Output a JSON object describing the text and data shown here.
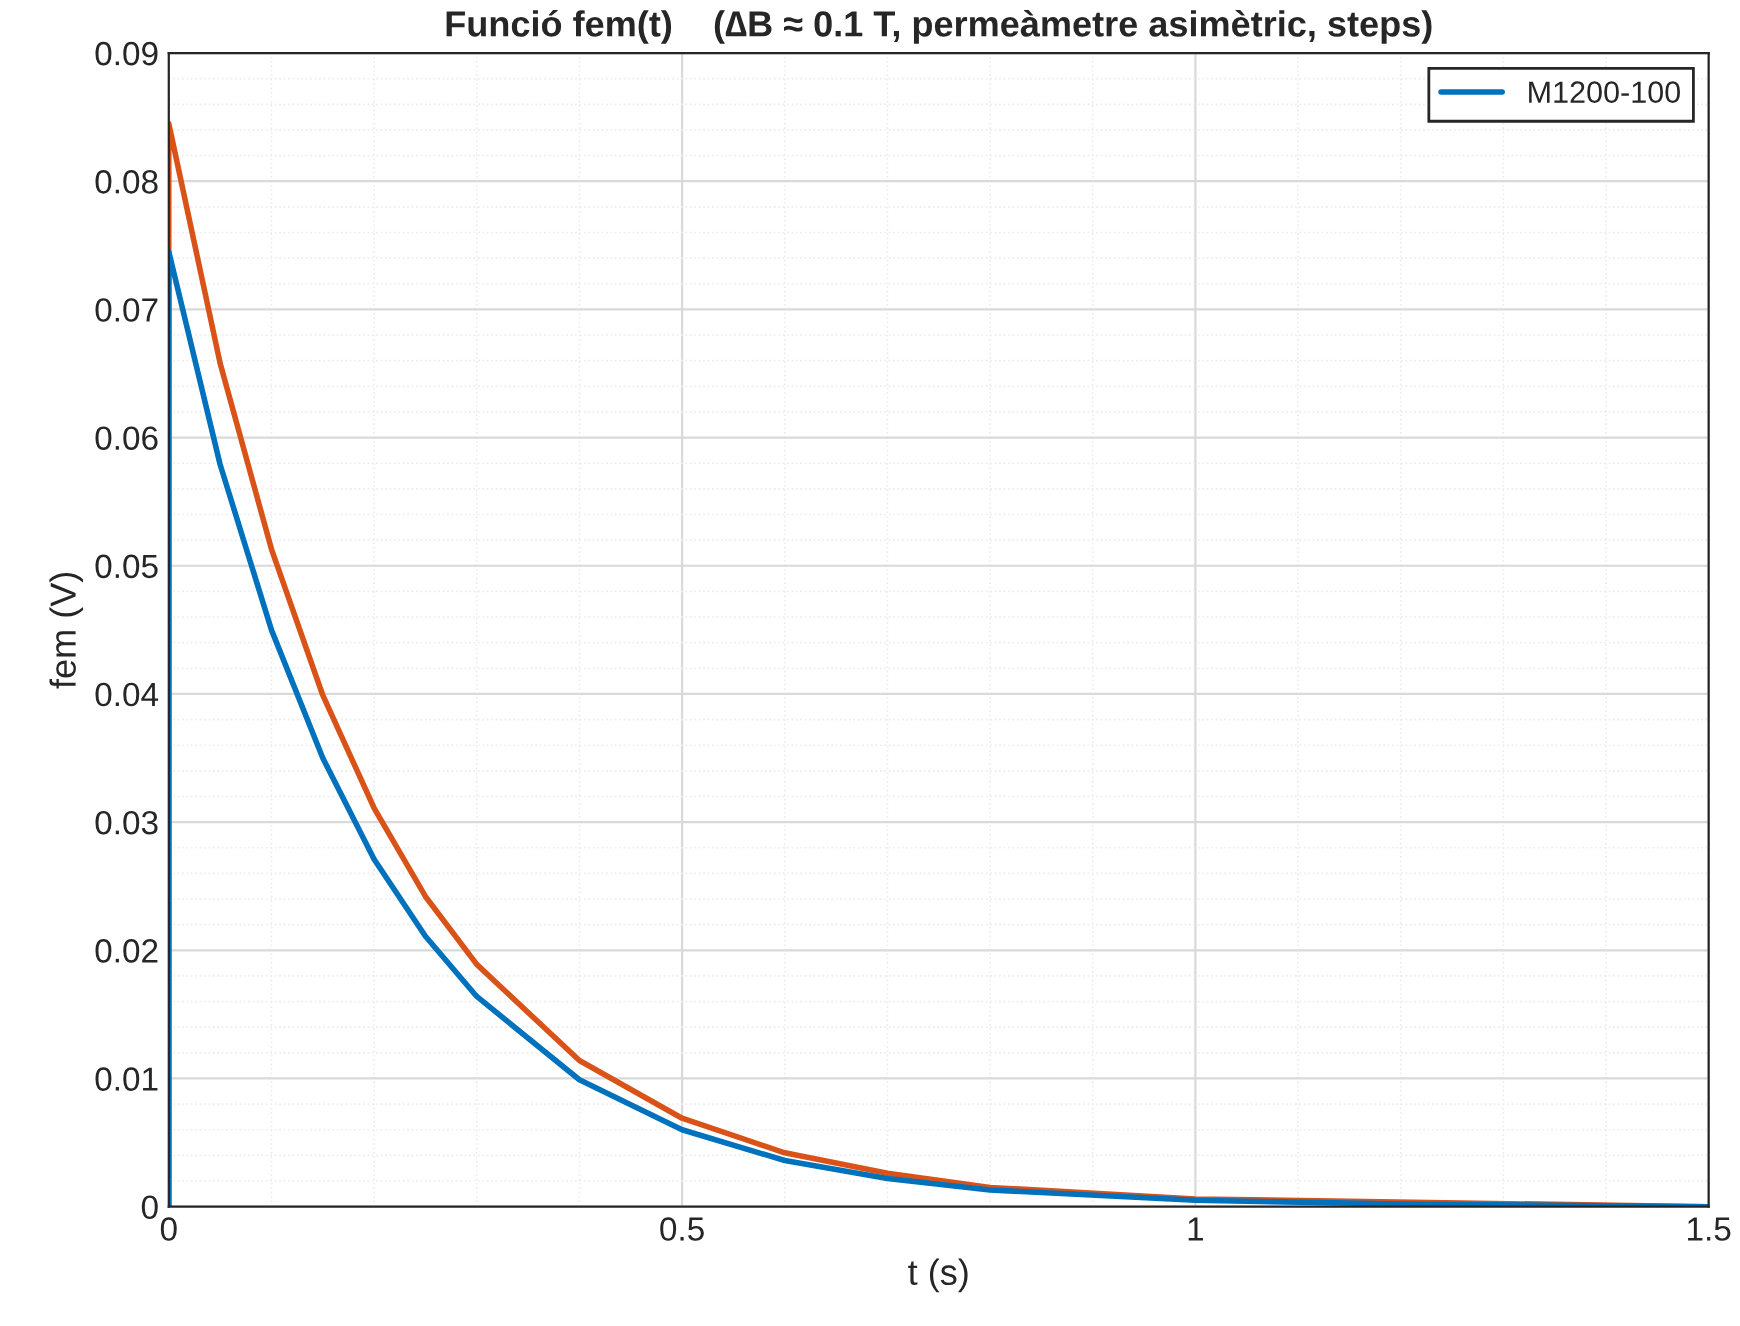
{
  "chart_data": {
    "type": "line",
    "title": "Funció fem(t)    (∆B ≈ 0.1 T, permeàmetre asimètric, steps)",
    "xlabel": "t (s)",
    "ylabel": "fem (V)",
    "x": [
      0,
      0,
      0.05,
      0.1,
      0.15,
      0.2,
      0.25,
      0.3,
      0.4,
      0.5,
      0.6,
      0.7,
      0.8,
      1.0,
      1.2,
      1.5
    ],
    "series": [
      {
        "color": "#d95319",
        "x": [
          0,
          0,
          0.05,
          0.1,
          0.15,
          0.2,
          0.25,
          0.3,
          0.4,
          0.5,
          0.6,
          0.7,
          0.8,
          1.0,
          1.5
        ],
        "values": [
          0,
          0.0845,
          0.0658,
          0.0513,
          0.0399,
          0.0311,
          0.0242,
          0.0189,
          0.0114,
          0.0069,
          0.0042,
          0.0026,
          0.0015,
          0.0006,
          0
        ]
      },
      {
        "name": "M1200-100",
        "color": "#0072bd",
        "values": [
          0,
          0.0745,
          0.0579,
          0.045,
          0.035,
          0.0271,
          0.0211,
          0.0164,
          0.0099,
          0.006,
          0.0036,
          0.0022,
          0.0013,
          0.0005,
          0.0002,
          0
        ]
      }
    ],
    "xlim": [
      0,
      1.5
    ],
    "xticks": [
      0,
      0.5,
      1,
      1.5
    ],
    "ylim": [
      0,
      0.09
    ],
    "yticks": [
      0,
      0.01,
      0.02,
      0.03,
      0.04,
      0.05,
      0.06,
      0.07,
      0.08,
      0.09
    ],
    "grid": true,
    "legend": "top right",
    "line_style": "solid",
    "marker": "none"
  }
}
